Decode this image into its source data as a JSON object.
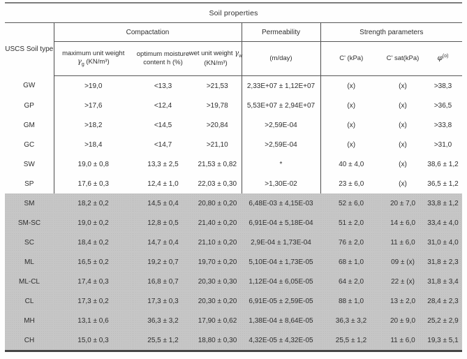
{
  "page": {
    "background": "#ffffff",
    "shaded_row_color": "#c6c6c6",
    "rule_color": "#565656",
    "text_color": "#2e2e2e"
  },
  "table": {
    "title": "Soil properties",
    "corner_label": "USCS Soil type",
    "groups": {
      "compaction": "Compactation",
      "permeability": "Permeability",
      "strength": "Strength parameters"
    },
    "sub": {
      "max_unit_weight": {
        "pre": "maximum unit weight ",
        "sym": "γ",
        "sub": "g",
        "post": " (KN/m³)"
      },
      "optimum_moisture": "optimum moisture content h (%)",
      "wet_unit_weight": {
        "pre": "wet unit weight ",
        "sym": "γ",
        "sub": "w",
        "post": " (KN/m³)"
      },
      "permeability_unit": "(m/day)",
      "c_eff": "C' (kPa)",
      "c_sat": "C' sat(kPa)",
      "phi": {
        "sym": "φ",
        "sup": "(o)"
      }
    },
    "rows": [
      {
        "type": "GW",
        "shaded": false,
        "cells": [
          ">19,0",
          "<13,3",
          ">21,53",
          "2,33E+07 ± 1,12E+07",
          "(x)",
          "(x)",
          ">38,3"
        ]
      },
      {
        "type": "GP",
        "shaded": false,
        "cells": [
          ">17,6",
          "<12,4",
          ">19,78",
          "5,53E+07 ± 2,94E+07",
          "(x)",
          "(x)",
          ">36,5"
        ]
      },
      {
        "type": "GM",
        "shaded": false,
        "cells": [
          ">18,2",
          "<14,5",
          ">20,84",
          ">2,59E-04",
          "(x)",
          "(x)",
          ">33,8"
        ]
      },
      {
        "type": "GC",
        "shaded": false,
        "cells": [
          ">18,4",
          "<14,7",
          ">21,10",
          ">2,59E-04",
          "(x)",
          "(x)",
          ">31,0"
        ]
      },
      {
        "type": "SW",
        "shaded": false,
        "cells": [
          "19,0 ± 0,8",
          "13,3 ± 2,5",
          "21,53 ± 0,82",
          "*",
          "40 ± 4,0",
          "(x)",
          "38,6 ± 1,2"
        ]
      },
      {
        "type": "SP",
        "shaded": false,
        "cells": [
          "17,6 ± 0,3",
          "12,4 ± 1,0",
          "22,03 ± 0,30",
          ">1,30E-02",
          "23 ± 6,0",
          "(x)",
          "36,5 ± 1,2"
        ]
      },
      {
        "type": "SM",
        "shaded": true,
        "cells": [
          "18,2 ± 0,2",
          "14,5 ± 0,4",
          "20,80 ± 0,20",
          "6,48E-03 ± 4,15E-03",
          "52 ± 6,0",
          "20 ± 7,0",
          "33,8 ± 1,2"
        ]
      },
      {
        "type": "SM-SC",
        "shaded": true,
        "cells": [
          "19,0 ± 0,2",
          "12,8 ± 0,5",
          "21,40 ± 0,20",
          "6,91E-04 ± 5,18E-04",
          "51 ± 2,0",
          "14 ± 6,0",
          "33,4 ± 4,0"
        ]
      },
      {
        "type": "SC",
        "shaded": true,
        "cells": [
          "18,4 ± 0,2",
          "14,7 ± 0,4",
          "21,10 ± 0,20",
          "2,9E-04 ± 1,73E-04",
          "76 ± 2,0",
          "11 ± 6,0",
          "31,0 ± 4,0"
        ]
      },
      {
        "type": "ML",
        "shaded": true,
        "cells": [
          "16,5 ± 0,2",
          "19,2 ± 0,7",
          "19,70 ± 0,20",
          "5,10E-04 ± 1,73E-05",
          "68 ± 1,0",
          "09 ± (x)",
          "31,8 ± 2,3"
        ]
      },
      {
        "type": "ML-CL",
        "shaded": true,
        "cells": [
          "17,4 ± 0,3",
          "16,8 ± 0,7",
          "20,30 ± 0,30",
          "1,12E-04 ± 6,05E-05",
          "64 ± 2,0",
          "22 ± (x)",
          "31,8 ± 3,4"
        ]
      },
      {
        "type": "CL",
        "shaded": true,
        "cells": [
          "17,3 ± 0,2",
          "17,3 ± 0,3",
          "20,30 ± 0,20",
          "6,91E-05 ± 2,59E-05",
          "88 ± 1,0",
          "13 ± 2,0",
          "28,4 ± 2,3"
        ]
      },
      {
        "type": "MH",
        "shaded": true,
        "cells": [
          "13,1 ± 0,6",
          "36,3 ± 3,2",
          "17,90 ± 0,62",
          "1,38E-04 ± 8,64E-05",
          "36,3 ± 3,2",
          "20 ± 9,0",
          "25,2 ± 2,9"
        ]
      },
      {
        "type": "CH",
        "shaded": true,
        "cells": [
          "15,0 ± 0,3",
          "25,5 ± 1,2",
          "18,80 ± 0,30",
          "4,32E-05 ± 4,32E-05",
          "25,5 ± 1,2",
          "11 ± 6,0",
          "19,3 ± 5,1"
        ]
      }
    ]
  }
}
